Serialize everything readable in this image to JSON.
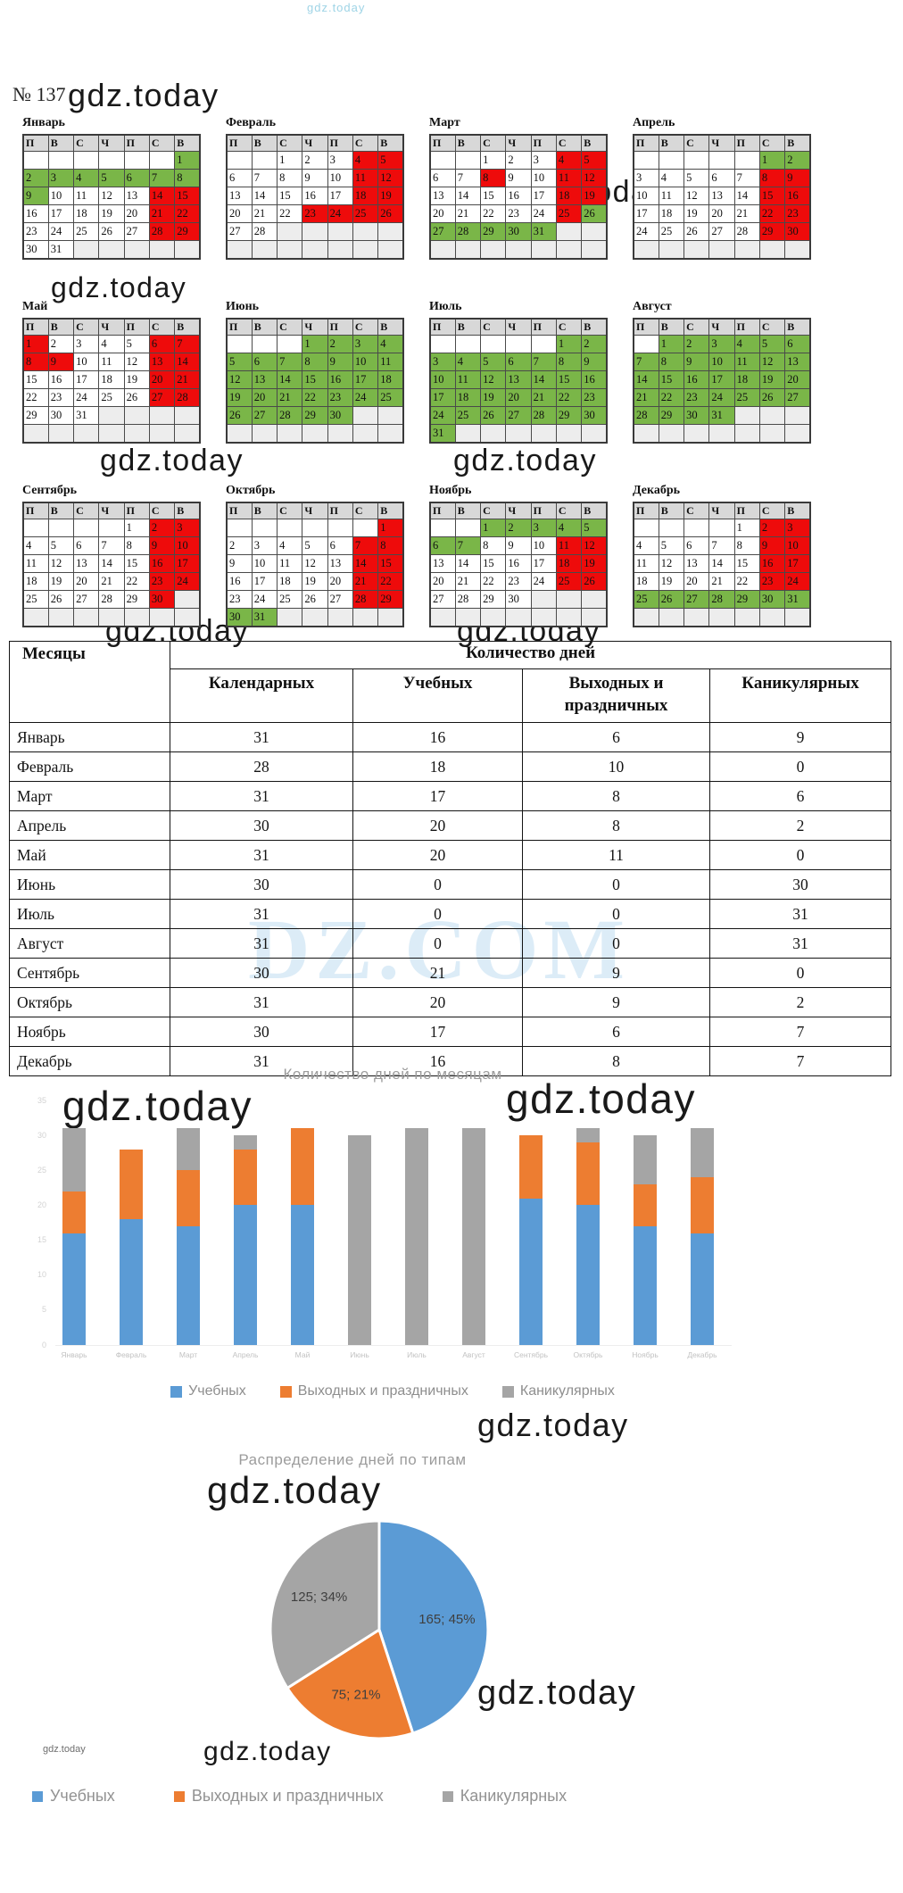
{
  "page": {
    "brand": "gdz.today",
    "number_label": "№ 137",
    "table_watermark": "DZ.COM"
  },
  "weekday_headers": [
    "П",
    "В",
    "С",
    "Ч",
    "П",
    "С",
    "В"
  ],
  "months": [
    {
      "name": "Январь",
      "weeks": [
        [
          "",
          "",
          "",
          "",
          "",
          "",
          "1g"
        ],
        [
          "2g",
          "3g",
          "4g",
          "5g",
          "6g",
          "7g",
          "8g"
        ],
        [
          "9g",
          "10w",
          "11w",
          "12w",
          "13w",
          "14r",
          "15r"
        ],
        [
          "16w",
          "17w",
          "18w",
          "19w",
          "20w",
          "21r",
          "22r"
        ],
        [
          "23w",
          "24w",
          "25w",
          "26w",
          "27w",
          "28r",
          "29r"
        ],
        [
          "30w",
          "31w",
          "e",
          "e",
          "e",
          "e",
          "e"
        ]
      ]
    },
    {
      "name": "Февраль",
      "weeks": [
        [
          "",
          "",
          "1w",
          "2w",
          "3w",
          "4r",
          "5r"
        ],
        [
          "6w",
          "7w",
          "8w",
          "9w",
          "10w",
          "11r",
          "12r"
        ],
        [
          "13w",
          "14w",
          "15w",
          "16w",
          "17w",
          "18r",
          "19r"
        ],
        [
          "20w",
          "21w",
          "22w",
          "23r",
          "24r",
          "25r",
          "26r"
        ],
        [
          "27w",
          "28w",
          "e",
          "e",
          "e",
          "e",
          "e"
        ],
        [
          "e",
          "e",
          "e",
          "e",
          "e",
          "e",
          "e"
        ]
      ]
    },
    {
      "name": "Март",
      "weeks": [
        [
          "",
          "",
          "1w",
          "2w",
          "3w",
          "4r",
          "5r"
        ],
        [
          "6w",
          "7w",
          "8r",
          "9w",
          "10w",
          "11r",
          "12r"
        ],
        [
          "13w",
          "14w",
          "15w",
          "16w",
          "17w",
          "18r",
          "19r"
        ],
        [
          "20w",
          "21w",
          "22w",
          "23w",
          "24w",
          "25r",
          "26g"
        ],
        [
          "27g",
          "28g",
          "29g",
          "30g",
          "31g",
          "e",
          "e"
        ],
        [
          "e",
          "e",
          "e",
          "e",
          "e",
          "e",
          "e"
        ]
      ]
    },
    {
      "name": "Апрель",
      "weeks": [
        [
          "",
          "",
          "",
          "",
          "",
          "1g",
          "2g"
        ],
        [
          "3w",
          "4w",
          "5w",
          "6w",
          "7w",
          "8r",
          "9r"
        ],
        [
          "10w",
          "11w",
          "12w",
          "13w",
          "14w",
          "15r",
          "16r"
        ],
        [
          "17w",
          "18w",
          "19w",
          "20w",
          "21w",
          "22r",
          "23r"
        ],
        [
          "24w",
          "25w",
          "26w",
          "27w",
          "28w",
          "29r",
          "30r"
        ],
        [
          "e",
          "e",
          "e",
          "e",
          "e",
          "e",
          "e"
        ]
      ]
    },
    {
      "name": "Май",
      "weeks": [
        [
          "1r",
          "2w",
          "3w",
          "4w",
          "5w",
          "6r",
          "7r"
        ],
        [
          "8r",
          "9r",
          "10w",
          "11w",
          "12w",
          "13r",
          "14r"
        ],
        [
          "15w",
          "16w",
          "17w",
          "18w",
          "19w",
          "20r",
          "21r"
        ],
        [
          "22w",
          "23w",
          "24w",
          "25w",
          "26w",
          "27r",
          "28r"
        ],
        [
          "29w",
          "30w",
          "31w",
          "e",
          "e",
          "e",
          "e"
        ],
        [
          "e",
          "e",
          "e",
          "e",
          "e",
          "e",
          "e"
        ]
      ]
    },
    {
      "name": "Июнь",
      "weeks": [
        [
          "",
          "",
          "",
          "1g",
          "2g",
          "3g",
          "4g"
        ],
        [
          "5g",
          "6g",
          "7g",
          "8g",
          "9g",
          "10g",
          "11g"
        ],
        [
          "12g",
          "13g",
          "14g",
          "15g",
          "16g",
          "17g",
          "18g"
        ],
        [
          "19g",
          "20g",
          "21g",
          "22g",
          "23g",
          "24g",
          "25g"
        ],
        [
          "26g",
          "27g",
          "28g",
          "29g",
          "30g",
          "e",
          "e"
        ],
        [
          "e",
          "e",
          "e",
          "e",
          "e",
          "e",
          "e"
        ]
      ]
    },
    {
      "name": "Июль",
      "weeks": [
        [
          "",
          "",
          "",
          "",
          "",
          "1g",
          "2g"
        ],
        [
          "3g",
          "4g",
          "5g",
          "6g",
          "7g",
          "8g",
          "9g"
        ],
        [
          "10g",
          "11g",
          "12g",
          "13g",
          "14g",
          "15g",
          "16g"
        ],
        [
          "17g",
          "18g",
          "19g",
          "20g",
          "21g",
          "22g",
          "23g"
        ],
        [
          "24g",
          "25g",
          "26g",
          "27g",
          "28g",
          "29g",
          "30g"
        ],
        [
          "31g",
          "e",
          "e",
          "e",
          "e",
          "e",
          "e"
        ]
      ]
    },
    {
      "name": "Август",
      "weeks": [
        [
          "",
          "1g",
          "2g",
          "3g",
          "4g",
          "5g",
          "6g"
        ],
        [
          "7g",
          "8g",
          "9g",
          "10g",
          "11g",
          "12g",
          "13g"
        ],
        [
          "14g",
          "15g",
          "16g",
          "17g",
          "18g",
          "19g",
          "20g"
        ],
        [
          "21g",
          "22g",
          "23g",
          "24g",
          "25g",
          "26g",
          "27g"
        ],
        [
          "28g",
          "29g",
          "30g",
          "31g",
          "e",
          "e",
          "e"
        ],
        [
          "e",
          "e",
          "e",
          "e",
          "e",
          "e",
          "e"
        ]
      ]
    },
    {
      "name": "Сентябрь",
      "weeks": [
        [
          "",
          "",
          "",
          "",
          "1w",
          "2r",
          "3r"
        ],
        [
          "4w",
          "5w",
          "6w",
          "7w",
          "8w",
          "9r",
          "10r"
        ],
        [
          "11w",
          "12w",
          "13w",
          "14w",
          "15w",
          "16r",
          "17r"
        ],
        [
          "18w",
          "19w",
          "20w",
          "21w",
          "22w",
          "23r",
          "24r"
        ],
        [
          "25w",
          "26w",
          "27w",
          "28w",
          "29w",
          "30r",
          "e"
        ],
        [
          "e",
          "e",
          "e",
          "e",
          "e",
          "e",
          "e"
        ]
      ]
    },
    {
      "name": "Октябрь",
      "weeks": [
        [
          "",
          "",
          "",
          "",
          "",
          "",
          "1r"
        ],
        [
          "2w",
          "3w",
          "4w",
          "5w",
          "6w",
          "7r",
          "8r"
        ],
        [
          "9w",
          "10w",
          "11w",
          "12w",
          "13w",
          "14r",
          "15r"
        ],
        [
          "16w",
          "17w",
          "18w",
          "19w",
          "20w",
          "21r",
          "22r"
        ],
        [
          "23w",
          "24w",
          "25w",
          "26w",
          "27w",
          "28r",
          "29r"
        ],
        [
          "30g",
          "31g",
          "e",
          "e",
          "e",
          "e",
          "e"
        ]
      ]
    },
    {
      "name": "Ноябрь",
      "weeks": [
        [
          "",
          "",
          "1g",
          "2g",
          "3g",
          "4g",
          "5g"
        ],
        [
          "6g",
          "7g",
          "8w",
          "9w",
          "10w",
          "11r",
          "12r"
        ],
        [
          "13w",
          "14w",
          "15w",
          "16w",
          "17w",
          "18r",
          "19r"
        ],
        [
          "20w",
          "21w",
          "22w",
          "23w",
          "24w",
          "25r",
          "26r"
        ],
        [
          "27w",
          "28w",
          "29w",
          "30w",
          "e",
          "e",
          "e"
        ],
        [
          "e",
          "e",
          "e",
          "e",
          "e",
          "e",
          "e"
        ]
      ]
    },
    {
      "name": "Декабрь",
      "weeks": [
        [
          "",
          "",
          "",
          "",
          "1w",
          "2r",
          "3r"
        ],
        [
          "4w",
          "5w",
          "6w",
          "7w",
          "8w",
          "9r",
          "10r"
        ],
        [
          "11w",
          "12w",
          "13w",
          "14w",
          "15w",
          "16r",
          "17r"
        ],
        [
          "18w",
          "19w",
          "20w",
          "21w",
          "22w",
          "23r",
          "24r"
        ],
        [
          "25g",
          "26g",
          "27g",
          "28g",
          "29g",
          "30g",
          "31g"
        ],
        [
          "e",
          "e",
          "e",
          "e",
          "e",
          "e",
          "e"
        ]
      ]
    }
  ],
  "table": {
    "col_month": "Месяцы",
    "col_group": "Количество дней",
    "subcols": [
      "Календарных",
      "Учебных",
      "Выходных и праздничных",
      "Каникулярных"
    ],
    "rows": [
      [
        "Январь",
        "31",
        "16",
        "6",
        "9"
      ],
      [
        "Февраль",
        "28",
        "18",
        "10",
        "0"
      ],
      [
        "Март",
        "31",
        "17",
        "8",
        "6"
      ],
      [
        "Апрель",
        "30",
        "20",
        "8",
        "2"
      ],
      [
        "Май",
        "31",
        "20",
        "11",
        "0"
      ],
      [
        "Июнь",
        "30",
        "0",
        "0",
        "30"
      ],
      [
        "Июль",
        "31",
        "0",
        "0",
        "31"
      ],
      [
        "Август",
        "31",
        "0",
        "0",
        "31"
      ],
      [
        "Сентябрь",
        "30",
        "21",
        "9",
        "0"
      ],
      [
        "Октябрь",
        "31",
        "20",
        "9",
        "2"
      ],
      [
        "Ноябрь",
        "30",
        "17",
        "6",
        "7"
      ],
      [
        "Декабрь",
        "31",
        "16",
        "8",
        "7"
      ]
    ]
  },
  "chart_data": [
    {
      "type": "bar",
      "stacked": true,
      "title": "Количество дней по месяцам",
      "categories": [
        "Январь",
        "Февраль",
        "Март",
        "Апрель",
        "Май",
        "Июнь",
        "Июль",
        "Август",
        "Сентябрь",
        "Октябрь",
        "Ноябрь",
        "Декабрь"
      ],
      "series": [
        {
          "name": "Учебных",
          "color": "#5b9bd5",
          "values": [
            16,
            18,
            17,
            20,
            20,
            0,
            0,
            0,
            21,
            20,
            17,
            16
          ]
        },
        {
          "name": "Выходных и праздничных",
          "color": "#ed7d31",
          "values": [
            6,
            10,
            8,
            8,
            11,
            0,
            0,
            0,
            9,
            9,
            6,
            8
          ]
        },
        {
          "name": "Каникулярных",
          "color": "#a5a5a5",
          "values": [
            9,
            0,
            6,
            2,
            0,
            30,
            31,
            31,
            0,
            2,
            7,
            7
          ]
        }
      ],
      "ylim": [
        0,
        35
      ],
      "ytick_step": 5,
      "grid": false,
      "legend_position": "bottom"
    },
    {
      "type": "pie",
      "title": "Распределение дней по типам",
      "slices": [
        {
          "name": "Учебных",
          "value": 165,
          "pct": 45,
          "label": "165; 45%",
          "color": "#5b9bd5"
        },
        {
          "name": "Выходных и праздничных",
          "value": 75,
          "pct": 21,
          "label": "75; 21%",
          "color": "#ed7d31"
        },
        {
          "name": "Каникулярных",
          "value": 125,
          "pct": 34,
          "label": "125; 34%",
          "color": "#a5a5a5"
        }
      ],
      "legend_position": "bottom"
    }
  ],
  "calendar_colors": {
    "school_day": "#ffffff",
    "weekend_holiday": "#ee0b0b",
    "vacation": "#7ab648",
    "header": "#d8d8d8",
    "empty": "#ededed"
  }
}
